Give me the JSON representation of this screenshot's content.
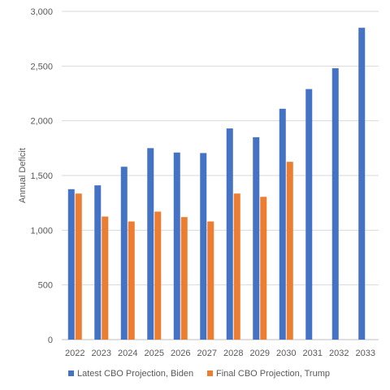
{
  "chart_data": {
    "type": "bar",
    "title": "",
    "xlabel": "",
    "ylabel": "Annual Deficit",
    "ylim": [
      0,
      3000
    ],
    "yticks": [
      0,
      500,
      1000,
      1500,
      2000,
      2500,
      3000
    ],
    "ytick_labels": [
      "0",
      "500",
      "1,000",
      "1,500",
      "2,000",
      "2,500",
      "3,000"
    ],
    "grid": true,
    "legend_position": "bottom",
    "categories": [
      "2022",
      "2023",
      "2024",
      "2025",
      "2026",
      "2027",
      "2028",
      "2029",
      "2030",
      "2031",
      "2032",
      "2033"
    ],
    "series": [
      {
        "name": "Latest CBO Projection, Biden",
        "color": "#4472C4",
        "values": [
          1375,
          1410,
          1580,
          1750,
          1710,
          1705,
          1930,
          1850,
          2110,
          2290,
          2480,
          2850
        ]
      },
      {
        "name": "Final CBO Projection, Trump",
        "color": "#ED7D31",
        "values": [
          1335,
          1125,
          1080,
          1170,
          1120,
          1080,
          1335,
          1305,
          1625,
          null,
          null,
          null
        ]
      }
    ]
  }
}
